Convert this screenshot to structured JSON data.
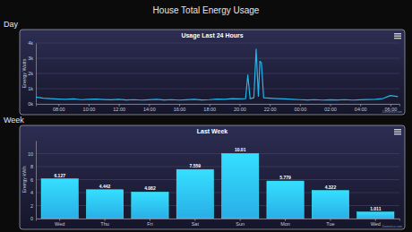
{
  "page_title": "House Total Energy Usage",
  "chart_data": [
    {
      "type": "line",
      "section": "Day",
      "title": "Usage Last 24 Hours",
      "y_label": "Energy Watts",
      "credits": "Domoticz.com",
      "color": "#22b6ea",
      "grid": true,
      "x": [
        6.5,
        7,
        7.5,
        8,
        8.5,
        9,
        9.5,
        10,
        10.5,
        11,
        11.5,
        12,
        12.5,
        13,
        13.5,
        14,
        14.5,
        15,
        15.5,
        16,
        16.5,
        17,
        17.5,
        18,
        18.5,
        19,
        19.5,
        20,
        20.4,
        20.55,
        20.7,
        20.95,
        21.1,
        21.25,
        21.35,
        21.45,
        21.6,
        22,
        22.5,
        23,
        23.5,
        24,
        24.5,
        25,
        25.5,
        26,
        26.5,
        27,
        27.5,
        28,
        28.5,
        29,
        29.5,
        30,
        30.5
      ],
      "values": [
        450,
        380,
        350,
        320,
        300,
        330,
        280,
        300,
        320,
        290,
        270,
        300,
        260,
        280,
        250,
        270,
        300,
        260,
        280,
        250,
        270,
        300,
        260,
        280,
        320,
        300,
        350,
        330,
        350,
        1900,
        350,
        400,
        3600,
        500,
        2800,
        2700,
        400,
        380,
        350,
        330,
        300,
        280,
        260,
        280,
        250,
        270,
        260,
        280,
        250,
        270,
        290,
        300,
        350,
        550,
        480
      ],
      "xlim": [
        6.5,
        30.6
      ],
      "xticks": [
        {
          "value": 8,
          "label": "08:00"
        },
        {
          "value": 10,
          "label": "10:00"
        },
        {
          "value": 12,
          "label": "12:00"
        },
        {
          "value": 14,
          "label": "14:00"
        },
        {
          "value": 16,
          "label": "16:00"
        },
        {
          "value": 18,
          "label": "18:00"
        },
        {
          "value": 20,
          "label": "20:00"
        },
        {
          "value": 22,
          "label": "22:00"
        },
        {
          "value": 24,
          "label": "00:00"
        },
        {
          "value": 26,
          "label": "02:00"
        },
        {
          "value": 28,
          "label": "04:00"
        },
        {
          "value": 30,
          "label": "06:00"
        }
      ],
      "ylim": [
        0,
        4000
      ],
      "yticks": [
        {
          "value": 0,
          "label": "0k"
        },
        {
          "value": 1000,
          "label": "1k"
        },
        {
          "value": 2000,
          "label": "2k"
        },
        {
          "value": 3000,
          "label": "3k"
        },
        {
          "value": 4000,
          "label": "4k"
        }
      ]
    },
    {
      "type": "bar",
      "section": "Week",
      "title": "Last Week",
      "y_label": "Energy kWh",
      "credits": "Domoticz.com",
      "color": "#29aee6",
      "grid": true,
      "data_labels": true,
      "categories": [
        "Wed",
        "Thu",
        "Fri",
        "Sat",
        "Sun",
        "Mon",
        "Tue",
        "Wed"
      ],
      "values": [
        6.127,
        4.442,
        4.082,
        7.559,
        10.01,
        5.779,
        4.322,
        1.011
      ],
      "ylim": [
        0,
        12
      ],
      "yticks": [
        0,
        2,
        4,
        6,
        8,
        10
      ]
    }
  ]
}
